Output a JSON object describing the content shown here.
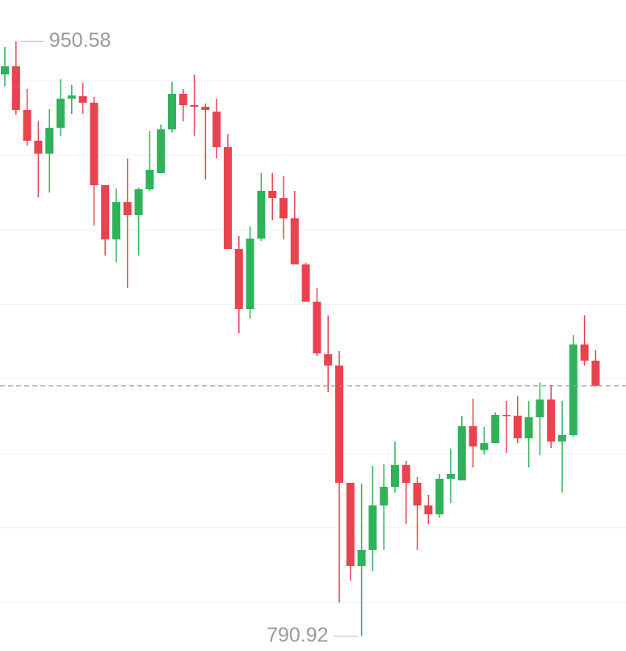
{
  "chart_data": {
    "type": "candlestick",
    "up_color": "#2fb25a",
    "down_color": "#e8434f",
    "ylim": [
      786.97,
      961.71
    ],
    "gridlines": [
      800,
      820,
      840,
      860,
      880,
      900,
      920,
      940
    ],
    "high_label": 950.58,
    "low_label": 790.92,
    "open": [
      941.74,
      943.91,
      932.19,
      923.94,
      920.46,
      927.41,
      935.22,
      935.88,
      934.14,
      912.0,
      897.46,
      907.44,
      903.97,
      910.91,
      915.25,
      926.98,
      936.53,
      933.49,
      933.05,
      931.75,
      922.2,
      894.85,
      878.79,
      897.67,
      910.48,
      908.53,
      903.1,
      890.73,
      880.74,
      866.63,
      863.59,
      832.12,
      809.76,
      814.1,
      826.04,
      831.03,
      836.89,
      832.12,
      826.04,
      823.66,
      833.2,
      832.77,
      847.31,
      840.89,
      842.76,
      850.35,
      850.13,
      844.06,
      849.7,
      854.48,
      843.19,
      844.93,
      869.24,
      864.9
    ],
    "high": [
      949.12,
      950.58,
      937.83,
      929.15,
      932.4,
      940.43,
      938.91,
      939.57,
      935.66,
      912.0,
      911.13,
      919.16,
      911.35,
      926.54,
      928.28,
      939.78,
      937.83,
      941.74,
      933.92,
      935.22,
      925.67,
      898.32,
      900.93,
      915.25,
      915.25,
      914.39,
      910.48,
      891.16,
      884.43,
      877.05,
      867.5,
      831.9,
      831.9,
      836.68,
      837.11,
      843.19,
      837.98,
      833.64,
      828.87,
      834.5,
      841.32,
      850.13,
      854.69,
      847.1,
      851.01,
      854.04,
      855.35,
      854.04,
      859.04,
      858.39,
      854.04,
      871.84,
      877.05,
      867.72
    ],
    "low": [
      938.48,
      930.88,
      922.64,
      908.74,
      910.05,
      925.24,
      931.1,
      931.1,
      901.15,
      893.12,
      891.38,
      884.43,
      893.12,
      910.48,
      915.25,
      926.11,
      929.15,
      925.24,
      913.52,
      919.16,
      895.07,
      872.28,
      876.18,
      897.02,
      902.67,
      897.46,
      890.73,
      880.74,
      866.2,
      856.43,
      799.99,
      805.86,
      790.92,
      808.46,
      814.1,
      829.52,
      821.05,
      814.1,
      821.05,
      822.79,
      826.69,
      832.77,
      836.24,
      839.72,
      842.76,
      840.15,
      842.76,
      836.24,
      839.5,
      841.45,
      829.52,
      844.49,
      863.59,
      857.95
    ],
    "close": [
      943.91,
      932.19,
      923.94,
      920.46,
      927.41,
      935.22,
      936.09,
      934.14,
      912.0,
      897.46,
      907.44,
      903.97,
      910.91,
      916.12,
      926.98,
      936.53,
      933.49,
      933.05,
      932.19,
      922.2,
      894.85,
      878.79,
      897.67,
      910.48,
      908.53,
      903.1,
      890.73,
      880.74,
      866.85,
      863.59,
      832.12,
      809.76,
      814.1,
      826.04,
      831.03,
      836.89,
      832.12,
      826.04,
      823.66,
      833.2,
      834.5,
      847.31,
      841.89,
      842.76,
      850.35,
      850.13,
      844.06,
      849.7,
      854.48,
      843.19,
      844.93,
      869.24,
      864.9,
      858.17
    ]
  }
}
